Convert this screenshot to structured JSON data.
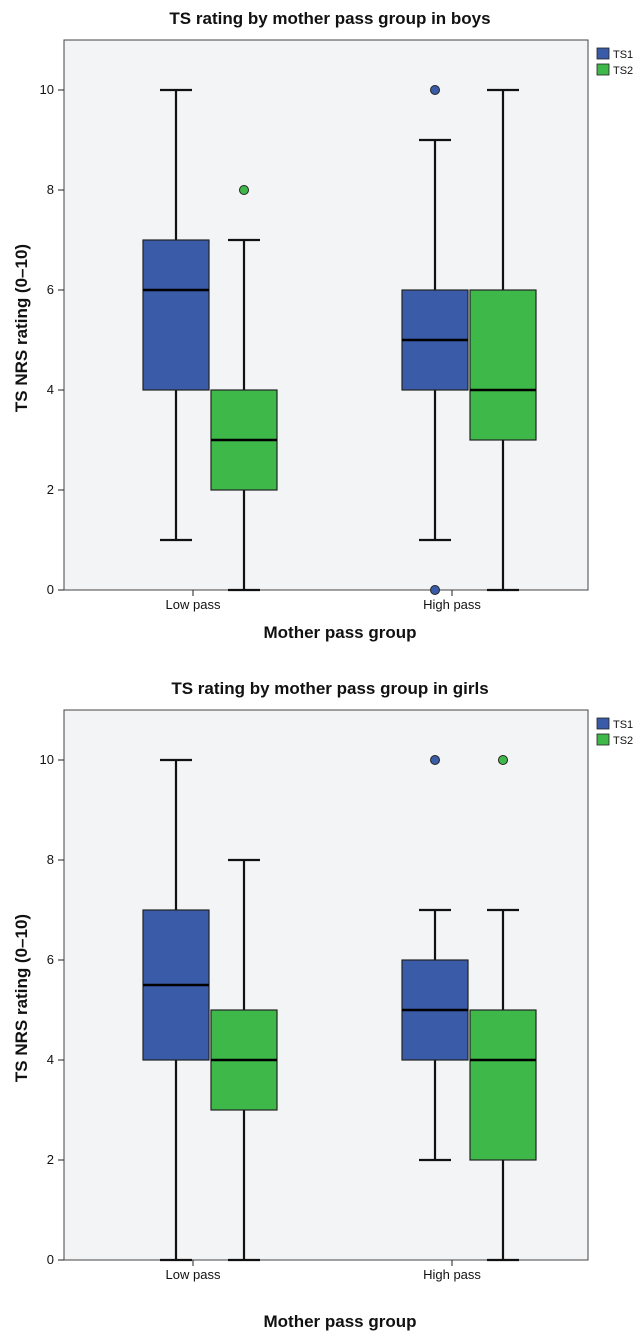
{
  "chart_data": [
    {
      "type": "boxplot",
      "title": "TS rating by mother pass group in boys",
      "xlabel": "Mother pass group",
      "ylabel": "TS NRS rating (0–10)",
      "categories": [
        "Low pass",
        "High pass"
      ],
      "ylim": [
        0,
        11
      ],
      "yticks": [
        0,
        2,
        4,
        6,
        8,
        10
      ],
      "legend_position": "top-right",
      "series": [
        {
          "name": "TS1",
          "color": "#3a5ba8",
          "boxes": [
            {
              "category": "Low pass",
              "whisker_low": 1,
              "q1": 4,
              "median": 6,
              "q3": 7,
              "whisker_high": 10,
              "outliers": []
            },
            {
              "category": "High pass",
              "whisker_low": 1,
              "q1": 4,
              "median": 5,
              "q3": 6,
              "whisker_high": 9,
              "outliers": [
                10,
                0
              ]
            }
          ]
        },
        {
          "name": "TS2",
          "color": "#3fb84a",
          "boxes": [
            {
              "category": "Low pass",
              "whisker_low": 0,
              "q1": 2,
              "median": 3,
              "q3": 4,
              "whisker_high": 7,
              "outliers": [
                8
              ]
            },
            {
              "category": "High pass",
              "whisker_low": 0,
              "q1": 3,
              "median": 4,
              "q3": 6,
              "whisker_high": 10,
              "outliers": []
            }
          ]
        }
      ]
    },
    {
      "type": "boxplot",
      "title": "TS rating by mother pass group in girls",
      "xlabel": "Mother pass group",
      "ylabel": "TS NRS rating (0–10)",
      "categories": [
        "Low pass",
        "High pass"
      ],
      "ylim": [
        0,
        11
      ],
      "yticks": [
        0,
        2,
        4,
        6,
        8,
        10
      ],
      "legend_position": "top-right",
      "series": [
        {
          "name": "TS1",
          "color": "#3a5ba8",
          "boxes": [
            {
              "category": "Low pass",
              "whisker_low": 0,
              "q1": 4,
              "median": 5.5,
              "q3": 7,
              "whisker_high": 10,
              "outliers": []
            },
            {
              "category": "High pass",
              "whisker_low": 2,
              "q1": 4,
              "median": 5,
              "q3": 6,
              "whisker_high": 7,
              "outliers": [
                10
              ]
            }
          ]
        },
        {
          "name": "TS2",
          "color": "#3fb84a",
          "boxes": [
            {
              "category": "Low pass",
              "whisker_low": 0,
              "q1": 3,
              "median": 4,
              "q3": 5,
              "whisker_high": 8,
              "outliers": []
            },
            {
              "category": "High pass",
              "whisker_low": 0,
              "q1": 2,
              "median": 4,
              "q3": 5,
              "whisker_high": 7,
              "outliers": [
                10
              ]
            }
          ]
        }
      ]
    }
  ]
}
